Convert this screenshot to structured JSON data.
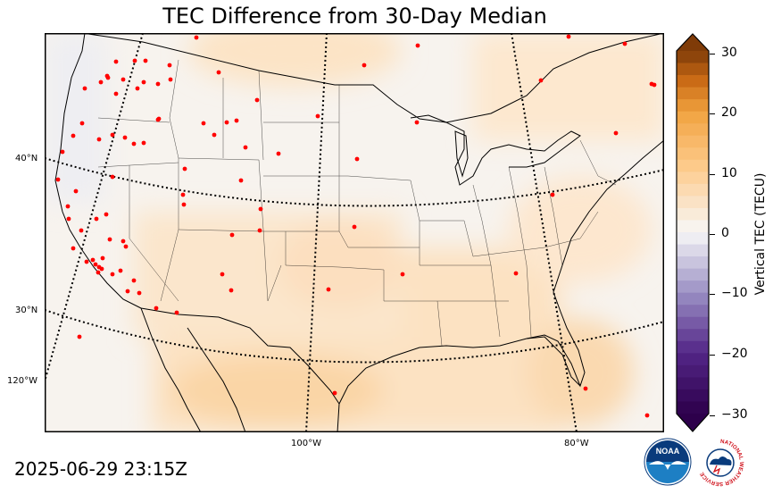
{
  "title": "TEC Difference from 30-Day Median",
  "timestamp": "2025-06-29 23:15Z",
  "colorbar": {
    "label": "Vertical TEC (TECU)",
    "ticks": [
      "30",
      "20",
      "10",
      "0",
      "−10",
      "−20",
      "−30"
    ],
    "range": [
      -30,
      30
    ]
  },
  "map_labels": {
    "lat40": "40°N",
    "lat30": "30°N",
    "lon120": "120°W",
    "lon100": "100°W",
    "lon80": "80°W"
  },
  "logos": {
    "noaa": "NOAA",
    "nws": "NATIONAL WEATHER SERVICE"
  },
  "colors": {
    "positive_max": "#7f3b08",
    "positive_mid": "#f1a340",
    "zero": "#f7f7f7",
    "negative_mid": "#998ec3",
    "negative_max": "#2d004b",
    "station": "#ff0000"
  },
  "stations_note_count": 88
}
